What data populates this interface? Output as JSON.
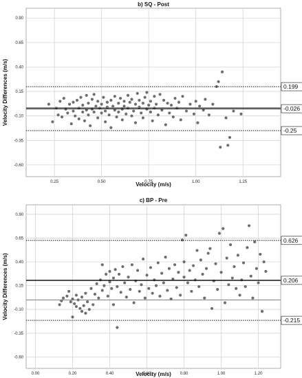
{
  "chart_data": [
    {
      "type": "scatter",
      "title": "b) SQ - Post",
      "xlabel": "Velocity (m/s)",
      "ylabel": "Velocity Differences (m/s)",
      "xlim": [
        0.1,
        1.45
      ],
      "ylim": [
        -0.72,
        1.0
      ],
      "xticks": [
        "0.25",
        "0.50",
        "0.75",
        "1.00",
        "1.25"
      ],
      "xtick_values": [
        0.25,
        0.5,
        0.75,
        1.0,
        1.25
      ],
      "yticks": [
        "0.90",
        "0.65",
        "0.40",
        "0.15",
        "-0.10",
        "-0.35",
        "-0.60"
      ],
      "ytick_values": [
        0.9,
        0.65,
        0.4,
        0.15,
        -0.1,
        -0.35,
        -0.6
      ],
      "grid": true,
      "reference_lines": [
        {
          "label": "0.199",
          "value": 0.199,
          "style": "dotted"
        },
        {
          "label": "-0.026",
          "value": -0.026,
          "style": "solid-thick"
        },
        {
          "label": "-0.25",
          "value": -0.25,
          "style": "dotted"
        }
      ],
      "zero_line": -0.015,
      "points": [
        [
          0.22,
          0.02
        ],
        [
          0.24,
          -0.16
        ],
        [
          0.26,
          -0.02
        ],
        [
          0.27,
          -0.09
        ],
        [
          0.28,
          0.05
        ],
        [
          0.29,
          -0.11
        ],
        [
          0.3,
          0.08
        ],
        [
          0.31,
          -0.03
        ],
        [
          0.32,
          -0.07
        ],
        [
          0.33,
          0.02
        ],
        [
          0.34,
          -0.18
        ],
        [
          0.35,
          -0.05
        ],
        [
          0.35,
          0.04
        ],
        [
          0.36,
          -0.1
        ],
        [
          0.37,
          0.06
        ],
        [
          0.38,
          -0.02
        ],
        [
          0.38,
          -0.13
        ],
        [
          0.39,
          0.09
        ],
        [
          0.4,
          -0.06
        ],
        [
          0.4,
          0.01
        ],
        [
          0.41,
          -0.15
        ],
        [
          0.42,
          0.11
        ],
        [
          0.42,
          -0.04
        ],
        [
          0.43,
          0.03
        ],
        [
          0.43,
          -0.09
        ],
        [
          0.44,
          -0.2
        ],
        [
          0.45,
          0.07
        ],
        [
          0.45,
          -0.03
        ],
        [
          0.46,
          -0.06
        ],
        [
          0.46,
          0.12
        ],
        [
          0.47,
          0.0
        ],
        [
          0.48,
          -0.12
        ],
        [
          0.48,
          0.05
        ],
        [
          0.49,
          -0.02
        ],
        [
          0.5,
          0.02
        ],
        [
          0.5,
          -0.07
        ],
        [
          0.51,
          0.09
        ],
        [
          0.52,
          -0.05
        ],
        [
          0.52,
          -0.16
        ],
        [
          0.53,
          0.04
        ],
        [
          0.53,
          -0.01
        ],
        [
          0.54,
          -0.09
        ],
        [
          0.55,
          0.06
        ],
        [
          0.55,
          -0.22
        ],
        [
          0.56,
          0.0
        ],
        [
          0.57,
          -0.04
        ],
        [
          0.57,
          0.1
        ],
        [
          0.58,
          -0.11
        ],
        [
          0.59,
          0.03
        ],
        [
          0.59,
          -0.06
        ],
        [
          0.6,
          0.08
        ],
        [
          0.61,
          -0.03
        ],
        [
          0.61,
          -0.14
        ],
        [
          0.62,
          0.05
        ],
        [
          0.62,
          0.0
        ],
        [
          0.63,
          -0.08
        ],
        [
          0.64,
          0.11
        ],
        [
          0.64,
          -0.02
        ],
        [
          0.65,
          0.04
        ],
        [
          0.66,
          -0.1
        ],
        [
          0.66,
          0.07
        ],
        [
          0.67,
          -0.05
        ],
        [
          0.68,
          0.02
        ],
        [
          0.68,
          -0.17
        ],
        [
          0.69,
          0.13
        ],
        [
          0.7,
          -0.01
        ],
        [
          0.7,
          0.06
        ],
        [
          0.71,
          -0.07
        ],
        [
          0.72,
          0.03
        ],
        [
          0.72,
          -0.12
        ],
        [
          0.73,
          0.09
        ],
        [
          0.74,
          -0.03
        ],
        [
          0.74,
          0.14
        ],
        [
          0.75,
          0.01
        ],
        [
          0.76,
          -0.06
        ],
        [
          0.76,
          0.05
        ],
        [
          0.77,
          -0.15
        ],
        [
          0.78,
          0.1
        ],
        [
          0.78,
          -0.02
        ],
        [
          0.79,
          0.02
        ],
        [
          0.8,
          -0.09
        ],
        [
          0.81,
          0.12
        ],
        [
          0.82,
          -0.04
        ],
        [
          0.83,
          0.06
        ],
        [
          0.84,
          -0.19
        ],
        [
          0.85,
          0.03
        ],
        [
          0.86,
          -0.07
        ],
        [
          0.87,
          0.01
        ],
        [
          0.88,
          -0.11
        ],
        [
          0.89,
          0.08
        ],
        [
          0.9,
          -0.02
        ],
        [
          0.91,
          0.04
        ],
        [
          0.92,
          -0.14
        ],
        [
          0.93,
          0.1
        ],
        [
          0.95,
          -0.05
        ],
        [
          0.97,
          0.02
        ],
        [
          0.99,
          -0.08
        ],
        [
          1.0,
          0.05
        ],
        [
          1.01,
          -0.17
        ],
        [
          1.02,
          0.0
        ],
        [
          1.04,
          -0.04
        ],
        [
          1.05,
          0.07
        ],
        [
          1.07,
          -0.09
        ],
        [
          1.09,
          0.02
        ],
        [
          1.11,
          0.2
        ],
        [
          1.12,
          0.25
        ],
        [
          1.13,
          -0.42
        ],
        [
          1.14,
          0.35
        ],
        [
          1.16,
          -0.12
        ],
        [
          1.17,
          -0.4
        ],
        [
          1.18,
          -0.32
        ],
        [
          1.2,
          -0.05
        ],
        [
          1.24,
          -0.08
        ]
      ]
    },
    {
      "type": "scatter",
      "title": "c) BP - Pre",
      "xlabel": "Velocity (m/s)",
      "ylabel": "Velocity Differences (m/s)",
      "xlim": [
        -0.05,
        1.32
      ],
      "ylim": [
        -0.72,
        1.0
      ],
      "xticks": [
        "0.00",
        "0.20",
        "0.40",
        "0.60",
        "0.80",
        "1.00",
        "1.20"
      ],
      "xtick_values": [
        0.0,
        0.2,
        0.4,
        0.6,
        0.8,
        1.0,
        1.2
      ],
      "yticks": [
        "0.90",
        "0.65",
        "0.40",
        "0.15",
        "-0.10",
        "-0.35",
        "-0.60"
      ],
      "ytick_values": [
        0.9,
        0.65,
        0.4,
        0.15,
        -0.1,
        -0.35,
        -0.6
      ],
      "grid": true,
      "reference_lines": [
        {
          "label": "0.626",
          "value": 0.626,
          "style": "dotted"
        },
        {
          "label": "0.206",
          "value": 0.206,
          "style": "solid-thick"
        },
        {
          "label": "-0.215",
          "value": -0.215,
          "style": "dotted"
        }
      ],
      "zero_line": 0.0,
      "points": [
        [
          0.13,
          -0.05
        ],
        [
          0.14,
          -0.01
        ],
        [
          0.15,
          0.02
        ],
        [
          0.17,
          0.04
        ],
        [
          0.18,
          0.09
        ],
        [
          0.19,
          -0.02
        ],
        [
          0.2,
          -0.18
        ],
        [
          0.2,
          0.01
        ],
        [
          0.21,
          -0.04
        ],
        [
          0.22,
          0.05
        ],
        [
          0.22,
          -0.07
        ],
        [
          0.23,
          0.0
        ],
        [
          0.24,
          -0.09
        ],
        [
          0.25,
          0.03
        ],
        [
          0.25,
          -0.12
        ],
        [
          0.26,
          -0.06
        ],
        [
          0.27,
          0.07
        ],
        [
          0.27,
          -0.14
        ],
        [
          0.28,
          -0.02
        ],
        [
          0.29,
          -0.1
        ],
        [
          0.3,
          0.12
        ],
        [
          0.31,
          -0.05
        ],
        [
          0.32,
          0.06
        ],
        [
          0.33,
          0.17
        ],
        [
          0.34,
          0.02
        ],
        [
          0.35,
          0.21
        ],
        [
          0.36,
          0.1
        ],
        [
          0.36,
          0.37
        ],
        [
          0.37,
          0.15
        ],
        [
          0.38,
          0.27
        ],
        [
          0.39,
          0.04
        ],
        [
          0.4,
          0.19
        ],
        [
          0.4,
          0.3
        ],
        [
          0.41,
          0.12
        ],
        [
          0.42,
          0.23
        ],
        [
          0.42,
          -0.05
        ],
        [
          0.43,
          0.32
        ],
        [
          0.44,
          0.14
        ],
        [
          0.44,
          -0.29
        ],
        [
          0.45,
          0.27
        ],
        [
          0.46,
          0.08
        ],
        [
          0.47,
          0.35
        ],
        [
          0.48,
          0.18
        ],
        [
          0.49,
          0.03
        ],
        [
          0.5,
          0.24
        ],
        [
          0.51,
          0.11
        ],
        [
          0.52,
          0.37
        ],
        [
          0.53,
          -0.03
        ],
        [
          0.54,
          0.2
        ],
        [
          0.55,
          0.31
        ],
        [
          0.56,
          0.09
        ],
        [
          0.57,
          0.16
        ],
        [
          0.58,
          0.43
        ],
        [
          0.59,
          0.02
        ],
        [
          0.6,
          0.26
        ],
        [
          0.61,
          0.12
        ],
        [
          0.62,
          0.34
        ],
        [
          0.63,
          0.07
        ],
        [
          0.64,
          0.21
        ],
        [
          0.65,
          0.15
        ],
        [
          0.66,
          0.39
        ],
        [
          0.67,
          0.04
        ],
        [
          0.68,
          0.28
        ],
        [
          0.69,
          0.18
        ],
        [
          0.7,
          0.45
        ],
        [
          0.71,
          0.1
        ],
        [
          0.72,
          0.33
        ],
        [
          0.73,
          0.01
        ],
        [
          0.74,
          0.22
        ],
        [
          0.75,
          0.37
        ],
        [
          0.76,
          0.13
        ],
        [
          0.77,
          0.29
        ],
        [
          0.78,
          0.05
        ],
        [
          0.79,
          0.63
        ],
        [
          0.8,
          0.24
        ],
        [
          0.8,
          0.4
        ],
        [
          0.81,
          0.68
        ],
        [
          0.82,
          0.18
        ],
        [
          0.83,
          0.31
        ],
        [
          0.84,
          0.09
        ],
        [
          0.85,
          0.36
        ],
        [
          0.86,
          0.21
        ],
        [
          0.87,
          0.52
        ],
        [
          0.88,
          0.14
        ],
        [
          0.89,
          0.42
        ],
        [
          0.9,
          0.27
        ],
        [
          0.91,
          0.02
        ],
        [
          0.92,
          0.33
        ],
        [
          0.93,
          0.49
        ],
        [
          0.94,
          0.54
        ],
        [
          0.95,
          -0.09
        ],
        [
          0.96,
          0.2
        ],
        [
          0.97,
          0.38
        ],
        [
          0.98,
          0.11
        ],
        [
          0.99,
          0.7
        ],
        [
          1.0,
          0.29
        ],
        [
          1.01,
          0.75
        ],
        [
          1.02,
          -0.03
        ],
        [
          1.03,
          0.44
        ],
        [
          1.04,
          0.16
        ],
        [
          1.05,
          0.58
        ],
        [
          1.06,
          0.23
        ],
        [
          1.07,
          0.35
        ],
        [
          1.08,
          0.12
        ],
        [
          1.09,
          0.47
        ],
        [
          1.1,
          0.05
        ],
        [
          1.11,
          0.21
        ],
        [
          1.12,
          0.39
        ],
        [
          1.13,
          0.14
        ],
        [
          1.14,
          0.55
        ],
        [
          1.15,
          0.78
        ],
        [
          1.16,
          0.25
        ],
        [
          1.17,
          0.02
        ],
        [
          1.18,
          0.61
        ],
        [
          1.19,
          0.33
        ],
        [
          1.2,
          0.18
        ],
        [
          1.21,
          0.48
        ],
        [
          1.22,
          -0.12
        ],
        [
          1.23,
          0.4
        ],
        [
          1.24,
          0.3
        ]
      ]
    }
  ]
}
